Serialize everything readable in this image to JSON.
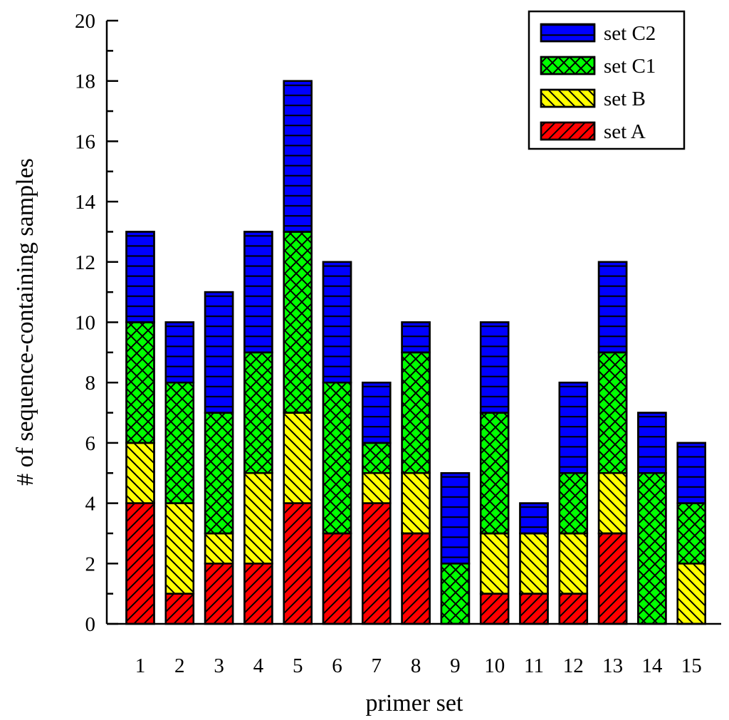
{
  "chart_data": {
    "type": "bar",
    "stacked": true,
    "title": "",
    "xlabel": "primer set",
    "ylabel": "# of sequence-containing samples",
    "categories": [
      "1",
      "2",
      "3",
      "4",
      "5",
      "6",
      "7",
      "8",
      "9",
      "10",
      "11",
      "12",
      "13",
      "14",
      "15"
    ],
    "ylim": [
      0,
      20
    ],
    "yticks": [
      0,
      2,
      4,
      6,
      8,
      10,
      12,
      14,
      16,
      18,
      20
    ],
    "legend_position": "top-right",
    "series": [
      {
        "name": "set A",
        "values": [
          4,
          1,
          2,
          2,
          4,
          3,
          4,
          3,
          0,
          1,
          1,
          1,
          3,
          0,
          0
        ],
        "color": "#ff0000",
        "pattern": "diagonal-forward"
      },
      {
        "name": "set B",
        "values": [
          2,
          3,
          1,
          3,
          3,
          0,
          1,
          2,
          0,
          2,
          2,
          2,
          2,
          0,
          2
        ],
        "color": "#ffff00",
        "pattern": "diagonal-back"
      },
      {
        "name": "set C1",
        "values": [
          4,
          4,
          4,
          4,
          6,
          5,
          1,
          4,
          2,
          4,
          0,
          2,
          4,
          5,
          2
        ],
        "color": "#00ff00",
        "pattern": "crosshatch"
      },
      {
        "name": "set C2",
        "values": [
          3,
          2,
          4,
          4,
          5,
          4,
          2,
          1,
          3,
          3,
          1,
          3,
          3,
          2,
          2
        ],
        "color": "#0000ff",
        "pattern": "horizontal"
      }
    ]
  }
}
